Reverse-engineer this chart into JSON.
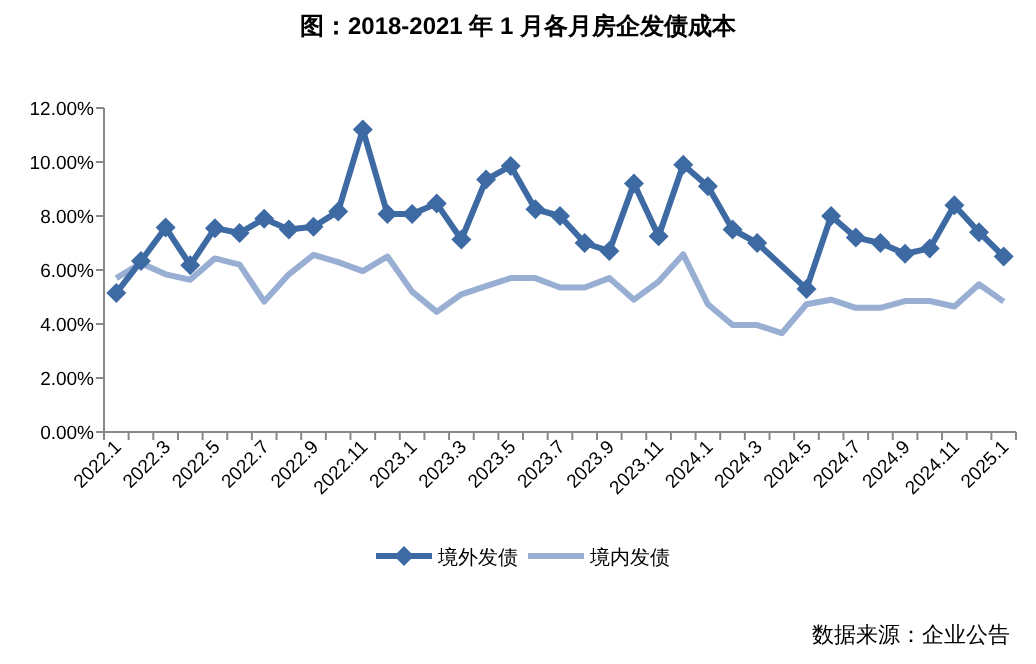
{
  "chart_data": {
    "type": "line",
    "title": "图：2018-2021 年 1 月各月房企发债成本",
    "categories": [
      "2022.1",
      null,
      "2022.3",
      null,
      "2022.5",
      null,
      "2022.7",
      null,
      "2022.9",
      null,
      "2022.11",
      null,
      "2023.1",
      null,
      "2023.3",
      null,
      "2023.5",
      null,
      "2023.7",
      null,
      "2023.9",
      null,
      "2023.11",
      null,
      "2024.1",
      null,
      "2024.3",
      null,
      "2024.5",
      null,
      "2024.7",
      null,
      "2024.9",
      null,
      "2024.11",
      null,
      "2025.1"
    ],
    "series": [
      {
        "name": "境外发债",
        "color": "#3e6aa4",
        "marker": "diamond",
        "values": [
          5.15,
          6.33,
          7.57,
          6.18,
          7.55,
          7.37,
          7.9,
          7.5,
          7.6,
          8.17,
          11.2,
          8.07,
          8.07,
          8.46,
          7.13,
          9.35,
          9.85,
          8.25,
          8.0,
          7.0,
          6.7,
          9.2,
          7.25,
          9.9,
          9.1,
          7.5,
          7.0,
          null,
          5.3,
          8.0,
          7.2,
          7.0,
          6.6,
          6.8,
          8.4,
          7.4,
          6.5
        ]
      },
      {
        "name": "境内发债",
        "color": "#98aed3",
        "marker": "none",
        "values": [
          5.7,
          6.25,
          5.84,
          5.64,
          6.43,
          6.2,
          4.83,
          5.84,
          6.56,
          6.29,
          5.96,
          6.5,
          5.2,
          4.45,
          5.1,
          5.4,
          5.7,
          5.7,
          5.35,
          5.35,
          5.7,
          4.9,
          5.57,
          6.58,
          4.73,
          3.96,
          3.96,
          3.66,
          4.73,
          4.9,
          4.6,
          4.6,
          4.85,
          4.85,
          4.65,
          5.47,
          4.83
        ]
      }
    ],
    "ylim": [
      0,
      12
    ],
    "yticks": [
      {
        "value": 0,
        "label": "0.00%"
      },
      {
        "value": 2,
        "label": "2.00%"
      },
      {
        "value": 4,
        "label": "4.00%"
      },
      {
        "value": 6,
        "label": "6.00%"
      },
      {
        "value": 8,
        "label": "8.00%"
      },
      {
        "value": 10,
        "label": "10.00%"
      },
      {
        "value": 12,
        "label": "12.00%"
      }
    ],
    "grid": false,
    "legend": "bottom",
    "line_style": "solid",
    "annotations": [
      "数据来源：企业公告"
    ]
  }
}
